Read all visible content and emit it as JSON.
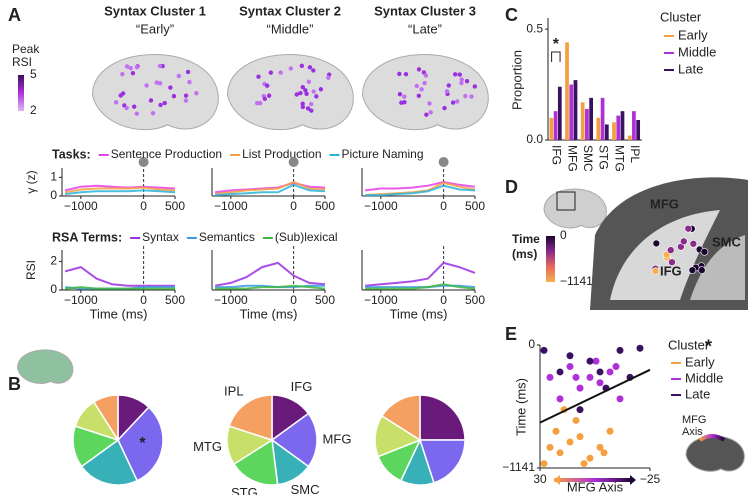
{
  "panel_labels": [
    "A",
    "B",
    "C",
    "D",
    "E"
  ],
  "brains": {
    "titles": [
      {
        "title": "Syntax Cluster 1",
        "subtitle": "“Early”"
      },
      {
        "title": "Syntax Cluster 2",
        "subtitle": "“Middle”"
      },
      {
        "title": "Syntax Cluster 3",
        "subtitle": "“Late”"
      }
    ],
    "legend_title": [
      "Peak",
      "RSI"
    ],
    "legend_ticks": [
      5,
      2
    ]
  },
  "panel_d": {
    "labels": [
      "MFG",
      "IFG",
      "SMC"
    ],
    "colorbar_title": [
      "Time",
      "(ms)"
    ],
    "colorbar_ticks": [
      0,
      {
        "value": -1141,
        "label": "−1141"
      }
    ]
  },
  "chart_data": [
    {
      "type": "line",
      "legend_title": "Tasks:",
      "ylabel": "γ (z)",
      "x": [
        -1250,
        -1000,
        -750,
        -500,
        -250,
        0,
        250,
        500
      ],
      "xlim": [
        -1300,
        500
      ],
      "xticks": [
        {
          "value": -1000,
          "label": "−1000"
        },
        0,
        500
      ],
      "ylim": [
        0,
        1.5
      ],
      "yticks": [
        0,
        1
      ],
      "series": [
        {
          "name": "Sentence Production",
          "color": "#e83ee8",
          "values": [
            0.3,
            0.5,
            0.55,
            0.5,
            0.45,
            0.5,
            0.45,
            0.4
          ]
        },
        {
          "name": "List Production",
          "color": "#f5a040",
          "values": [
            0.2,
            0.35,
            0.4,
            0.4,
            0.4,
            0.45,
            0.35,
            0.3
          ]
        },
        {
          "name": "Picture Naming",
          "color": "#2ab5d8",
          "values": [
            0.1,
            0.2,
            0.25,
            0.25,
            0.25,
            0.3,
            0.25,
            0.2
          ]
        }
      ]
    },
    {
      "type": "line",
      "x": [
        -1250,
        -1000,
        -750,
        -500,
        -250,
        0,
        250,
        500
      ],
      "xlim": [
        -1300,
        500
      ],
      "xticks": [
        {
          "value": -1000,
          "label": "−1000"
        },
        0,
        500
      ],
      "ylim": [
        0,
        1.5
      ],
      "series": [
        {
          "color": "#e83ee8",
          "values": [
            0.2,
            0.3,
            0.35,
            0.4,
            0.45,
            0.7,
            0.5,
            0.45
          ]
        },
        {
          "color": "#f5a040",
          "values": [
            0.1,
            0.2,
            0.3,
            0.35,
            0.4,
            0.75,
            0.4,
            0.35
          ]
        },
        {
          "color": "#2ab5d8",
          "values": [
            0.05,
            0.1,
            0.15,
            0.2,
            0.2,
            0.6,
            0.3,
            0.25
          ]
        }
      ]
    },
    {
      "type": "line",
      "x": [
        -1250,
        -1000,
        -750,
        -500,
        -250,
        0,
        250,
        500
      ],
      "xlim": [
        -1300,
        500
      ],
      "xticks": [
        {
          "value": -1000,
          "label": "−1000"
        },
        0,
        500
      ],
      "ylim": [
        0,
        1.5
      ],
      "series": [
        {
          "color": "#e83ee8",
          "values": [
            0.3,
            0.4,
            0.4,
            0.45,
            0.55,
            0.75,
            0.6,
            0.5
          ]
        },
        {
          "color": "#f5a040",
          "values": [
            0.05,
            0.1,
            0.15,
            0.2,
            0.3,
            0.7,
            0.5,
            0.35
          ]
        },
        {
          "color": "#2ab5d8",
          "values": [
            0.05,
            0.05,
            0.1,
            0.15,
            0.25,
            0.55,
            0.35,
            0.3
          ]
        }
      ]
    },
    {
      "type": "line",
      "legend_title": "RSA Terms:",
      "ylabel": "RSI",
      "xlabel": "Time (ms)",
      "x": [
        -1250,
        -1000,
        -750,
        -500,
        -250,
        0,
        250,
        500
      ],
      "xlim": [
        -1300,
        500
      ],
      "xticks": [
        {
          "value": -1000,
          "label": "−1000"
        },
        0,
        500
      ],
      "ylim": [
        0,
        2.8
      ],
      "yticks": [
        0,
        2
      ],
      "series": [
        {
          "name": "Syntax",
          "color": "#9b30e0",
          "values": [
            1.3,
            1.6,
            0.8,
            0.4,
            0.3,
            0.3,
            0.3,
            0.3
          ]
        },
        {
          "name": "Semantics",
          "color": "#3a9ae8",
          "values": [
            0.2,
            0.1,
            0.1,
            0.1,
            0.1,
            0.2,
            0.2,
            0.2
          ]
        },
        {
          "name": "(Sub)lexical",
          "color": "#3cb83c",
          "values": [
            0.1,
            0.2,
            0.1,
            0.1,
            0.1,
            0.1,
            0.1,
            0.1
          ]
        }
      ]
    },
    {
      "type": "line",
      "xlabel": "Time (ms)",
      "x": [
        -1250,
        -1000,
        -750,
        -500,
        -250,
        0,
        250,
        500
      ],
      "xlim": [
        -1300,
        500
      ],
      "xticks": [
        {
          "value": -1000,
          "label": "−1000"
        },
        0,
        500
      ],
      "ylim": [
        0,
        2.8
      ],
      "series": [
        {
          "color": "#9b30e0",
          "values": [
            0.3,
            0.5,
            0.9,
            1.6,
            1.9,
            1.0,
            0.5,
            0.4
          ]
        },
        {
          "color": "#3a9ae8",
          "values": [
            0.2,
            0.2,
            0.3,
            0.3,
            0.2,
            0.2,
            0.3,
            0.3
          ]
        },
        {
          "color": "#3cb83c",
          "values": [
            0.1,
            0.1,
            0.1,
            0.2,
            0.2,
            0.3,
            0.2,
            0.1
          ]
        }
      ]
    },
    {
      "type": "line",
      "xlabel": "Time (ms)",
      "x": [
        -1250,
        -1000,
        -750,
        -500,
        -250,
        0,
        250,
        500
      ],
      "xlim": [
        -1300,
        500
      ],
      "xticks": [
        {
          "value": -1000,
          "label": "−1000"
        },
        0,
        500
      ],
      "ylim": [
        0,
        2.8
      ],
      "series": [
        {
          "color": "#9b30e0",
          "values": [
            0.3,
            0.4,
            0.5,
            0.6,
            0.8,
            1.9,
            1.6,
            1.2
          ]
        },
        {
          "color": "#3a9ae8",
          "values": [
            0.2,
            0.2,
            0.2,
            0.2,
            0.2,
            0.3,
            0.3,
            0.2
          ]
        },
        {
          "color": "#3cb83c",
          "values": [
            0.1,
            0.1,
            0.1,
            0.1,
            0.2,
            0.4,
            0.2,
            0.1
          ]
        }
      ]
    },
    {
      "type": "pie",
      "categories": [
        "IFG",
        "MFG",
        "SMC",
        "STG",
        "MTG",
        "IPL"
      ],
      "colors": [
        "#6a1a7a",
        "#7b68ee",
        "#38b0b8",
        "#5cd65c",
        "#c8e06a",
        "#f5a060"
      ],
      "annotation": "*",
      "series": [
        {
          "values": [
            12,
            31,
            22,
            15,
            11,
            9
          ]
        },
        {
          "values": [
            15,
            20,
            13,
            18,
            14,
            20
          ]
        },
        {
          "values": [
            25,
            20,
            12,
            12,
            15,
            16
          ]
        }
      ]
    },
    {
      "type": "bar",
      "ylabel": "Proportion",
      "legend_title": "Cluster",
      "annotation": "*",
      "categories": [
        "IFG",
        "MFG",
        "SMC",
        "STG",
        "MTG",
        "IPL"
      ],
      "ylim": [
        0,
        0.55
      ],
      "yticks": [
        {
          "value": 0,
          "label": "0.0"
        },
        0.5
      ],
      "series": [
        {
          "name": "Early",
          "color": "#f5a040",
          "values": [
            0.1,
            0.44,
            0.17,
            0.1,
            0.08,
            0.02
          ]
        },
        {
          "name": "Middle",
          "color": "#b030d8",
          "values": [
            0.13,
            0.25,
            0.14,
            0.19,
            0.11,
            0.13
          ]
        },
        {
          "name": "Late",
          "color": "#3a1060",
          "values": [
            0.24,
            0.27,
            0.19,
            0.07,
            0.13,
            0.09
          ]
        }
      ]
    },
    {
      "type": "scatter",
      "xlabel": "MFG Axis",
      "ylabel": "Time (ms)",
      "legend_title": "Cluster",
      "annotation": "*",
      "inset_label": [
        "MFG",
        "Axis"
      ],
      "xlim": [
        30,
        -25
      ],
      "xticks": [
        30,
        {
          "value": -25,
          "label": "−25"
        }
      ],
      "ylim": [
        -1141,
        0
      ],
      "yticks": [
        {
          "value": -1141,
          "label": "−1141"
        },
        0
      ],
      "fit": {
        "x": [
          30,
          -25
        ],
        "y": [
          -720,
          -230
        ]
      },
      "series": [
        {
          "name": "Early",
          "color": "#f5a040",
          "x": [
            28,
            25,
            20,
            15,
            10,
            5,
            0,
            -5,
            12,
            22,
            8,
            -2,
            18
          ],
          "y": [
            -1100,
            -950,
            -1000,
            -900,
            -850,
            -1050,
            -950,
            -800,
            -700,
            -800,
            -1100,
            -1000,
            -600
          ]
        },
        {
          "name": "Middle",
          "color": "#b030d8",
          "x": [
            25,
            15,
            10,
            5,
            0,
            -5,
            -10,
            20,
            2,
            -8,
            12
          ],
          "y": [
            -300,
            -200,
            -400,
            -300,
            -350,
            -250,
            -500,
            -500,
            -150,
            -200,
            -300
          ]
        },
        {
          "name": "Late",
          "color": "#3a1060",
          "x": [
            28,
            15,
            5,
            0,
            -10,
            -20,
            -15,
            -3,
            10,
            20
          ],
          "y": [
            -50,
            -100,
            -150,
            -250,
            -50,
            -30,
            -300,
            -400,
            -600,
            -250
          ]
        }
      ]
    }
  ]
}
